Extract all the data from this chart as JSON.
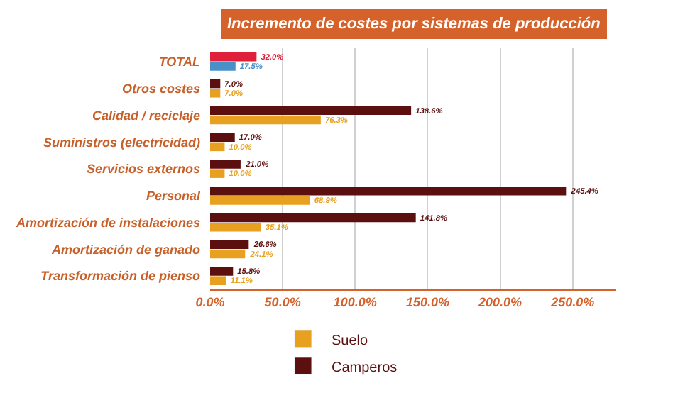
{
  "chart_data": {
    "type": "bar",
    "orientation": "horizontal",
    "title": "Incremento de costes por sistemas de producción",
    "categories": [
      "TOTAL",
      "Otros costes",
      "Calidad / reciclaje",
      "Suministros (electricidad)",
      "Servicios externos",
      "Personal",
      "Amortización de instalaciones",
      "Amortización de ganado",
      "Transformación de pienso"
    ],
    "series": [
      {
        "name": "Camperos",
        "color": "#5c0f0f",
        "colors": [
          "#e0203a",
          "#5c0f0f",
          "#5c0f0f",
          "#5c0f0f",
          "#5c0f0f",
          "#5c0f0f",
          "#5c0f0f",
          "#5c0f0f",
          "#5c0f0f"
        ],
        "values": [
          32.0,
          7.0,
          138.6,
          17.0,
          21.0,
          245.4,
          141.8,
          26.6,
          15.8
        ],
        "value_labels": [
          "32.0%",
          "7.0%",
          "138.6%",
          "17.0%",
          "21.0%",
          "245.4%",
          "141.8%",
          "26.6%",
          "15.8%"
        ]
      },
      {
        "name": "Suelo",
        "color": "#e8a020",
        "colors": [
          "#4a90c8",
          "#e8a020",
          "#e8a020",
          "#e8a020",
          "#e8a020",
          "#e8a020",
          "#e8a020",
          "#e8a020",
          "#e8a020"
        ],
        "values": [
          17.5,
          7.0,
          76.3,
          10.0,
          10.0,
          68.9,
          35.1,
          24.1,
          11.1
        ],
        "value_labels": [
          "17.5%",
          "7.0%",
          "76.3%",
          "10.0%",
          "10.0%",
          "68.9%",
          "35.1%",
          "24.1%",
          "11.1%"
        ]
      }
    ],
    "xlim": [
      0,
      280
    ],
    "xticks": [
      {
        "value": 0,
        "label": "0.0%"
      },
      {
        "value": 50,
        "label": "50.0%"
      },
      {
        "value": 100,
        "label": "100.0%"
      },
      {
        "value": 150,
        "label": "150.0%"
      },
      {
        "value": 200,
        "label": "200.0%"
      },
      {
        "value": 250,
        "label": "250.0%"
      }
    ],
    "grid": "x",
    "legend": "bottom"
  }
}
